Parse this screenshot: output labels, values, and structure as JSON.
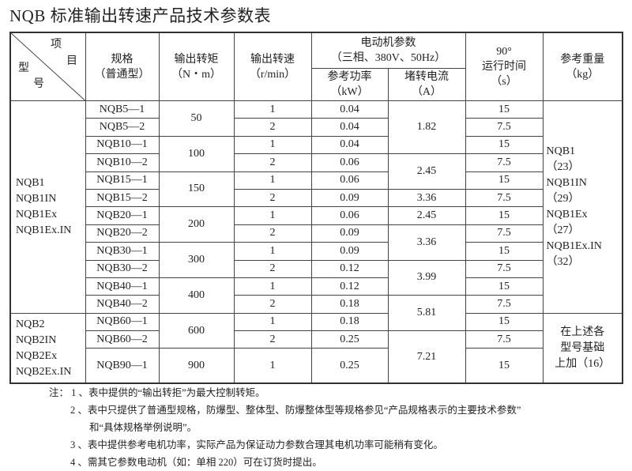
{
  "title": "NQB 标准输出转速产品技术参数表",
  "header": {
    "diag_item_1": "项",
    "diag_item_2": "目",
    "diag_model_1": "型",
    "diag_model_2": "号",
    "spec": "规格",
    "spec_sub": "（普通型）",
    "torque": "输出转矩",
    "torque_unit": "（N・m）",
    "speed": "输出转速",
    "speed_unit": "（r/min）",
    "motor": "电动机参数",
    "motor_sub": "（三相、380V、50Hz）",
    "power": "参考功率",
    "power_unit": "（kW）",
    "current": "堵转电流",
    "current_unit": "（A）",
    "time_1": "90°",
    "time_2": "运行时间",
    "time_3": "（s）",
    "weight": "参考重量",
    "weight_unit": "（kg）"
  },
  "rows": [
    {
      "spec": "NQB5—1",
      "speed": "1",
      "power": "0.04",
      "time": "15"
    },
    {
      "spec": "NQB5—2",
      "speed": "2",
      "power": "0.04",
      "time": "7.5"
    },
    {
      "spec": "NQB10—1",
      "speed": "1",
      "power": "0.04",
      "time": "15"
    },
    {
      "spec": "NQB10—2",
      "speed": "2",
      "power": "0.06",
      "time": "7.5"
    },
    {
      "spec": "NQB15—1",
      "speed": "1",
      "power": "0.06",
      "time": "15"
    },
    {
      "spec": "NQB15—2",
      "speed": "2",
      "power": "0.09",
      "time": "7.5"
    },
    {
      "spec": "NQB20—1",
      "speed": "1",
      "power": "0.06",
      "time": "15"
    },
    {
      "spec": "NQB20—2",
      "speed": "2",
      "power": "0.09",
      "time": "7.5"
    },
    {
      "spec": "NQB30—1",
      "speed": "1",
      "power": "0.09",
      "time": "15"
    },
    {
      "spec": "NQB30—2",
      "speed": "2",
      "power": "0.12",
      "time": "7.5"
    },
    {
      "spec": "NQB40—1",
      "speed": "1",
      "power": "0.12",
      "time": "15"
    },
    {
      "spec": "NQB40—2",
      "speed": "2",
      "power": "0.18",
      "time": "7.5"
    },
    {
      "spec": "NQB60—1",
      "speed": "1",
      "power": "0.18",
      "time": "15"
    },
    {
      "spec": "NQB60—2",
      "speed": "2",
      "power": "0.25",
      "time": "7.5"
    },
    {
      "spec": "NQB90—1",
      "speed": "1",
      "power": "0.25",
      "time": "15"
    }
  ],
  "torque_groups": [
    {
      "value": "50",
      "rows": 2
    },
    {
      "value": "100",
      "rows": 2
    },
    {
      "value": "150",
      "rows": 2
    },
    {
      "value": "200",
      "rows": 2
    },
    {
      "value": "300",
      "rows": 2
    },
    {
      "value": "400",
      "rows": 2
    },
    {
      "value": "600",
      "rows": 2
    },
    {
      "value": "900",
      "rows": 1
    }
  ],
  "current_groups": [
    {
      "value": "1.82",
      "rows": 3
    },
    {
      "value": "2.45",
      "rows": 2
    },
    {
      "value": "3.36",
      "rows": 1
    },
    {
      "value": "2.45",
      "rows": 1
    },
    {
      "value": "3.36",
      "rows": 2
    },
    {
      "value": "3.99",
      "rows": 2
    },
    {
      "value": "5.81",
      "rows": 2
    },
    {
      "value": "7.21",
      "rows": 2
    }
  ],
  "model_groups": [
    {
      "lines": [
        "NQB1",
        "NQB1IN",
        "NQB1Ex",
        "NQB1Ex.IN"
      ],
      "rows": 12
    },
    {
      "lines": [
        "NQB2",
        "NQB2IN",
        "NQB2Ex",
        "NQB2Ex.IN"
      ],
      "rows": 3
    }
  ],
  "weight_groups": [
    {
      "lines": [
        "NQB1",
        "（23）",
        "NQB1IN",
        "（29）",
        "NQB1Ex",
        "（27）",
        "NQB1Ex.IN",
        "（32）"
      ],
      "rows": 12,
      "align": "left"
    },
    {
      "lines": [
        "在上述各",
        "型号基础",
        "上加（16）"
      ],
      "rows": 3,
      "align": "center"
    }
  ],
  "notes": {
    "label": "注：",
    "n1": "1 、表中提供的“输出转拒”为最大控制转矩。",
    "n2": "2 、表中只提供了普通型规格，防爆型、整体型、防爆整体型等规格参见“产品规格表示的主要技术参数”",
    "n2b": "和“具体规格举例说明”。",
    "n3": "3 、表中提供参考电机功率，实际产品为保证动力参数合理其电机功率可能稍有变化。",
    "n4": "4 、需其它参数电动机（如：单相 220）可在订货时提出。"
  }
}
